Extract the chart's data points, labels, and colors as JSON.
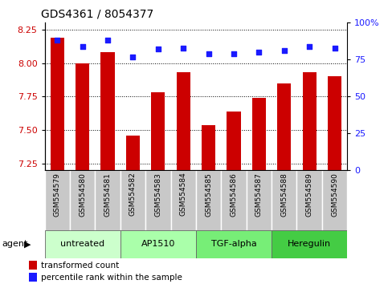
{
  "title": "GDS4361 / 8054377",
  "samples": [
    "GSM554579",
    "GSM554580",
    "GSM554581",
    "GSM554582",
    "GSM554583",
    "GSM554584",
    "GSM554585",
    "GSM554586",
    "GSM554587",
    "GSM554588",
    "GSM554589",
    "GSM554590"
  ],
  "bar_values": [
    8.19,
    8.0,
    8.08,
    7.46,
    7.78,
    7.93,
    7.54,
    7.64,
    7.74,
    7.85,
    7.93,
    7.9
  ],
  "dot_values": [
    88,
    84,
    88,
    77,
    82,
    83,
    79,
    79,
    80,
    81,
    84,
    83
  ],
  "ylim": [
    7.2,
    8.3
  ],
  "y2lim": [
    0,
    100
  ],
  "yticks": [
    7.25,
    7.5,
    7.75,
    8.0,
    8.25
  ],
  "y2ticks": [
    0,
    25,
    50,
    75,
    100
  ],
  "bar_color": "#cc0000",
  "dot_color": "#1a1aff",
  "agent_groups": [
    {
      "label": "untreated",
      "start": 0,
      "end": 3,
      "color": "#ccffcc"
    },
    {
      "label": "AP1510",
      "start": 3,
      "end": 6,
      "color": "#aaffaa"
    },
    {
      "label": "TGF-alpha",
      "start": 6,
      "end": 9,
      "color": "#77ee77"
    },
    {
      "label": "Heregulin",
      "start": 9,
      "end": 12,
      "color": "#44cc44"
    }
  ],
  "grid_color": "#000000",
  "xlabel_cell_color": "#c8c8c8",
  "xlabel_border_color": "#ffffff"
}
